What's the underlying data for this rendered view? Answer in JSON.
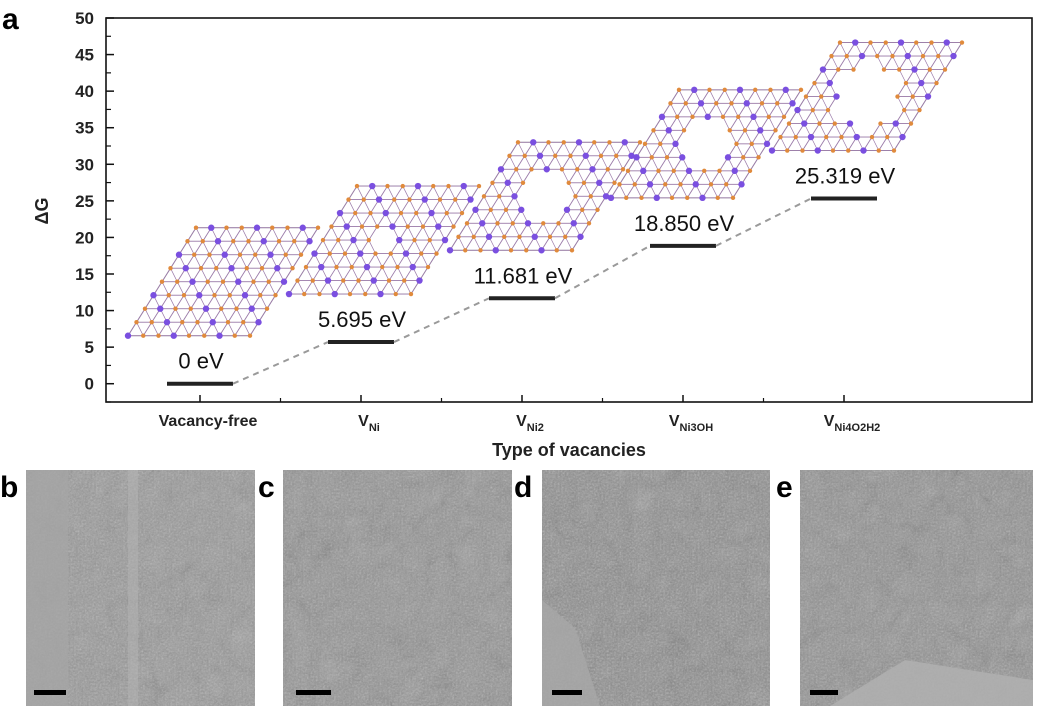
{
  "panels": {
    "a": "a",
    "b": "b",
    "c": "c",
    "d": "d",
    "e": "e"
  },
  "chart_data": {
    "type": "line",
    "ylabel": "ΔG",
    "xlabel": "Type of vacancies",
    "ylim": [
      -2.5,
      50
    ],
    "yticks": [
      0,
      5,
      10,
      15,
      20,
      25,
      30,
      35,
      40,
      45,
      50
    ],
    "categories": [
      {
        "main": "Vacancy-free",
        "subs": []
      },
      {
        "main": "V",
        "subs": [
          "Ni"
        ]
      },
      {
        "main": "V",
        "subs": [
          "Ni",
          "2"
        ]
      },
      {
        "main": "V",
        "subs": [
          "Ni",
          "3",
          "OH"
        ]
      },
      {
        "main": "V",
        "subs": [
          "Ni",
          "4",
          "O",
          "2",
          "H",
          "2"
        ]
      }
    ],
    "values": [
      0,
      5.695,
      11.681,
      18.85,
      25.319
    ],
    "value_labels": [
      "0 eV",
      "5.695 eV",
      "11.681 eV",
      "18.850 eV",
      "25.319 eV"
    ],
    "connector": "dashed",
    "vacancy_sizes": [
      0,
      1,
      2,
      3,
      4
    ]
  },
  "colors": {
    "nickel_atom": "#7a4fe0",
    "oxygen_atom": "#e08a3c",
    "bond": "#9a7aa8",
    "level_bar": "#222222",
    "dashed_line": "#9a9a9a",
    "tem_background": "#8e8e8e"
  }
}
